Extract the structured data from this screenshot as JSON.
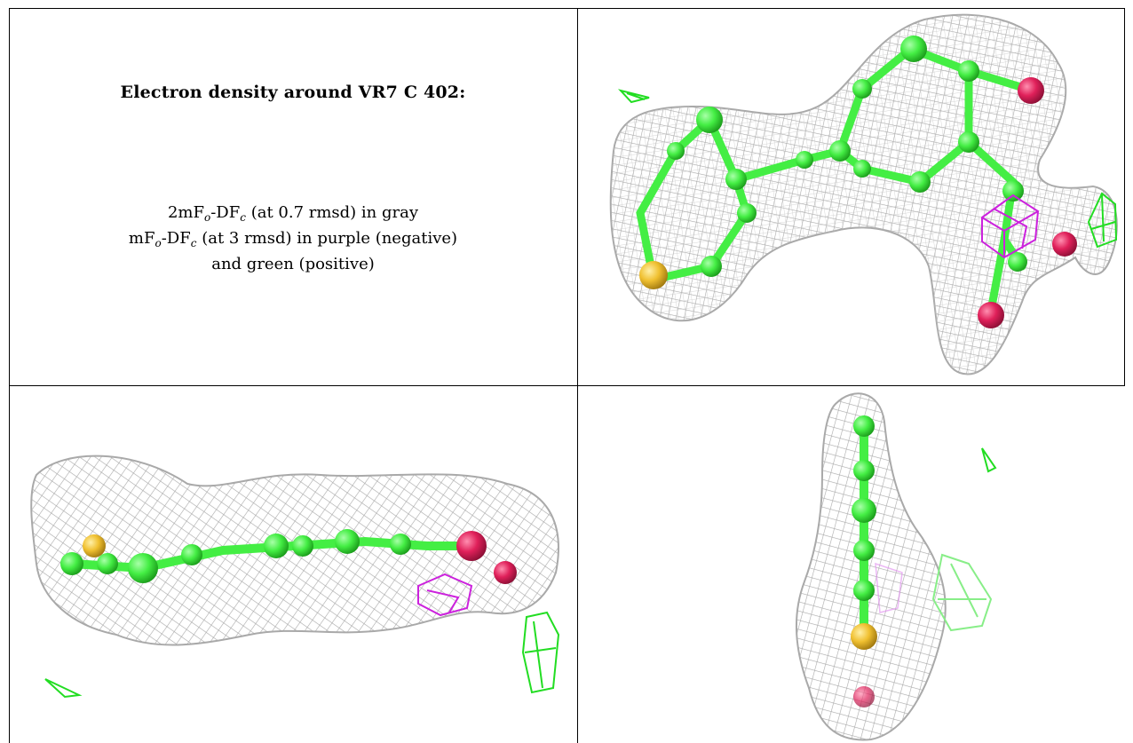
{
  "caption": {
    "title": "Electron density around VR7 C 402:",
    "line1": {
      "pre": "2mF",
      "sub1": "o",
      "mid": "-DF",
      "sub2": "c",
      "post": " (at 0.7 rmsd) in gray"
    },
    "line2": {
      "pre": "mF",
      "sub1": "o",
      "mid": "-DF",
      "sub2": "c",
      "post": " (at 3 rmsd) in purple (negative)"
    },
    "line3": "and green (positive)"
  },
  "colors": {
    "mesh_2fofc": "#a9a9a9",
    "negative_density": "#cc22dd",
    "positive_density": "#22dd22",
    "carbon": "#44ee44",
    "sulfur": "#f0c030",
    "oxygen": "#e0205a"
  }
}
